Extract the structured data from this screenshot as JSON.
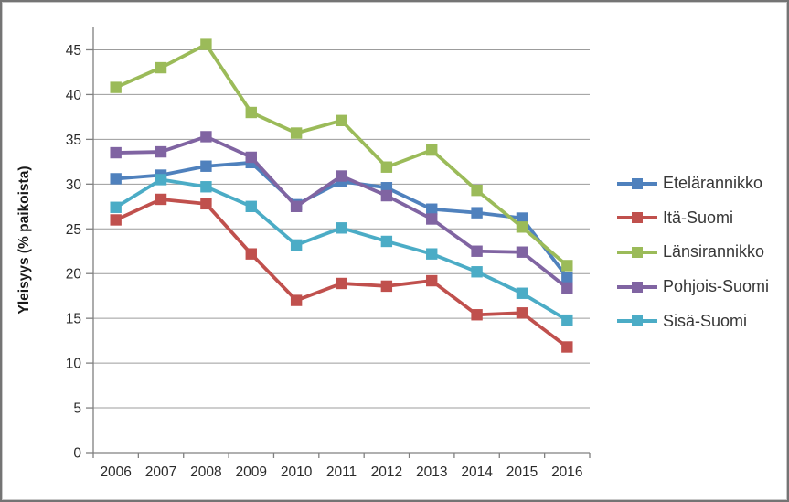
{
  "chart_data": {
    "type": "line",
    "title": "",
    "xlabel": "",
    "ylabel": "Yleisyys (% paikoista)",
    "categories": [
      "2006",
      "2007",
      "2008",
      "2009",
      "2010",
      "2011",
      "2012",
      "2013",
      "2014",
      "2015",
      "2016"
    ],
    "ylim": [
      0,
      47.5
    ],
    "yticks": [
      0,
      5,
      10,
      15,
      20,
      25,
      30,
      35,
      40,
      45
    ],
    "grid": true,
    "legend_position": "right",
    "marker": "square",
    "series": [
      {
        "name": "Etelärannikko",
        "color": "#4F81BD",
        "values": [
          30.6,
          31.0,
          32.0,
          32.4,
          27.7,
          30.3,
          29.6,
          27.2,
          26.8,
          26.2,
          19.6
        ]
      },
      {
        "name": "Itä-Suomi",
        "color": "#C0504D",
        "values": [
          26.0,
          28.3,
          27.8,
          22.2,
          17.0,
          18.9,
          18.6,
          19.2,
          15.4,
          15.6,
          11.8
        ]
      },
      {
        "name": "Länsirannikko",
        "color": "#9BBB59",
        "values": [
          40.8,
          43.0,
          45.6,
          38.0,
          35.7,
          37.1,
          31.9,
          33.8,
          29.3,
          25.2,
          20.9
        ]
      },
      {
        "name": "Pohjois-Suomi",
        "color": "#8064A2",
        "values": [
          33.5,
          33.6,
          35.3,
          33.0,
          27.5,
          30.9,
          28.7,
          26.1,
          22.5,
          22.4,
          18.4
        ]
      },
      {
        "name": "Sisä-Suomi",
        "color": "#4BACC6",
        "values": [
          27.4,
          30.5,
          29.7,
          27.5,
          23.2,
          25.1,
          23.6,
          22.2,
          20.2,
          17.8,
          14.8
        ]
      }
    ]
  },
  "style": {
    "background": "#FFFFFF",
    "frame_border_color": "#747474",
    "gridline_color": "#9C9C9C",
    "axis_color": "#808080",
    "tick_text_color": "#2B2B2B",
    "legend_text_color": "#373737",
    "axis_title_color": "#1A1A1A"
  }
}
